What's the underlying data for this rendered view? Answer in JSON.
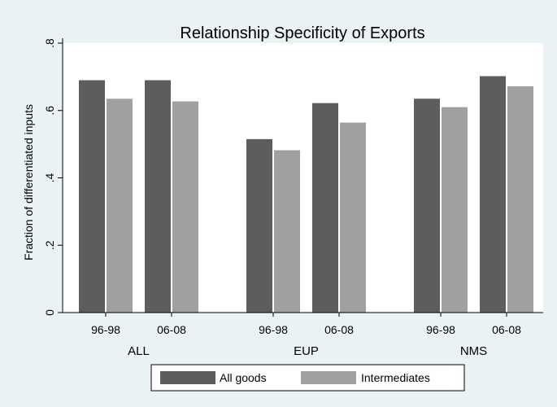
{
  "chart_data": {
    "type": "bar",
    "title": "Relationship Specificity of Exports",
    "ylabel": "Fraction of differentiated inputs",
    "xlabel": "",
    "ylim": [
      0,
      0.8
    ],
    "yticks": [
      0,
      0.2,
      0.4,
      0.6,
      0.8
    ],
    "ytick_labels": [
      "0",
      ".2",
      ".4",
      ".6",
      ".8"
    ],
    "groups": [
      {
        "name": "ALL",
        "categories": [
          "96-98",
          "06-08"
        ]
      },
      {
        "name": "EUP",
        "categories": [
          "96-98",
          "06-08"
        ]
      },
      {
        "name": "NMS",
        "categories": [
          "96-98",
          "06-08"
        ]
      }
    ],
    "series": [
      {
        "name": "All goods",
        "color": "#5d5d5d",
        "values": [
          0.69,
          0.69,
          0.515,
          0.622,
          0.635,
          0.702
        ]
      },
      {
        "name": "Intermediates",
        "color": "#a0a0a0",
        "values": [
          0.635,
          0.627,
          0.482,
          0.564,
          0.61,
          0.672
        ]
      }
    ],
    "grid": false,
    "legend_position": "bottom"
  }
}
